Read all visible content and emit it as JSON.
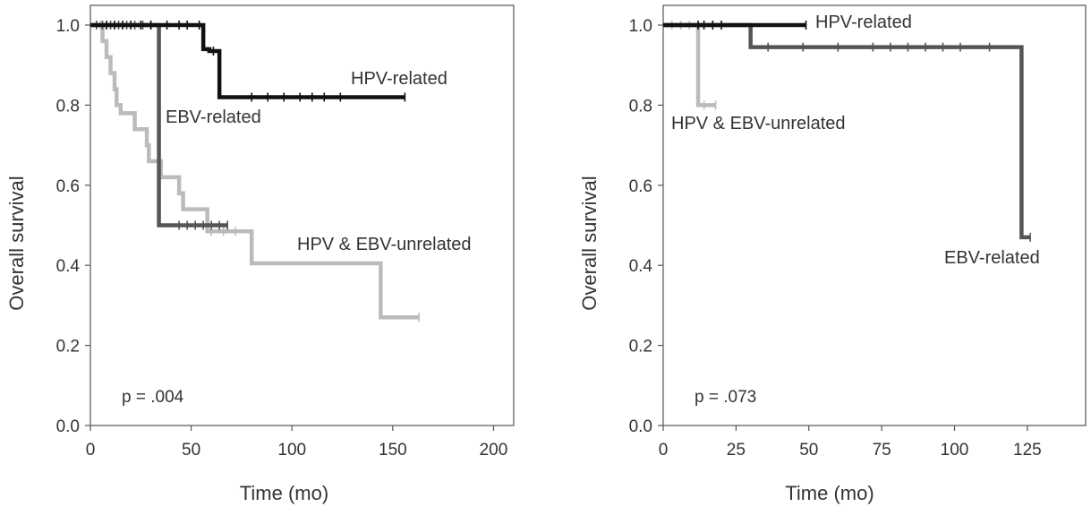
{
  "chart_data": [
    {
      "type": "line",
      "subtype": "kaplan-meier",
      "xlabel": "Time (mo)",
      "ylabel": "Overall survival",
      "xlim": [
        0,
        210
      ],
      "ylim": [
        0,
        1.0
      ],
      "xticks": [
        "0",
        "50",
        "100",
        "150",
        "200"
      ],
      "yticks": [
        "0.0",
        "0.2",
        "0.4",
        "0.6",
        "0.8",
        "1.0"
      ],
      "annotation": "p = .004",
      "grid": false,
      "series": [
        {
          "name": "HPV & EBV-unrelated",
          "color": "#bbbbbb",
          "label_position": "right",
          "steps": [
            [
              0,
              1.0
            ],
            [
              6,
              0.96
            ],
            [
              8,
              0.92
            ],
            [
              10,
              0.88
            ],
            [
              12,
              0.84
            ],
            [
              13,
              0.8
            ],
            [
              15,
              0.78
            ],
            [
              22,
              0.74
            ],
            [
              28,
              0.7
            ],
            [
              29,
              0.66
            ],
            [
              35,
              0.62
            ],
            [
              44,
              0.58
            ],
            [
              46,
              0.54
            ],
            [
              58,
              0.485
            ],
            [
              80,
              0.405
            ],
            [
              144,
              0.27
            ],
            [
              163,
              0.27
            ]
          ],
          "censors": [
            [
              5,
              1.0
            ],
            [
              60,
              0.485
            ],
            [
              66,
              0.485
            ],
            [
              72,
              0.485
            ],
            [
              163,
              0.27
            ]
          ]
        },
        {
          "name": "EBV-related",
          "color": "#555555",
          "label_position": "upper-left",
          "steps": [
            [
              0,
              1.0
            ],
            [
              34,
              0.5
            ],
            [
              68,
              0.5
            ]
          ],
          "censors": [
            [
              3,
              1.0
            ],
            [
              6,
              1.0
            ],
            [
              10,
              1.0
            ],
            [
              14,
              1.0
            ],
            [
              18,
              1.0
            ],
            [
              22,
              1.0
            ],
            [
              26,
              1.0
            ],
            [
              30,
              1.0
            ],
            [
              44,
              0.5
            ],
            [
              48,
              0.5
            ],
            [
              52,
              0.5
            ],
            [
              56,
              0.5
            ],
            [
              60,
              0.5
            ],
            [
              64,
              0.5
            ],
            [
              68,
              0.5
            ]
          ]
        },
        {
          "name": "HPV-related",
          "color": "#111111",
          "label_position": "top-right",
          "steps": [
            [
              0,
              1.0
            ],
            [
              56,
              0.94
            ],
            [
              59,
              0.935
            ],
            [
              64,
              0.82
            ],
            [
              156,
              0.82
            ]
          ],
          "censors": [
            [
              8,
              1.0
            ],
            [
              12,
              1.0
            ],
            [
              16,
              1.0
            ],
            [
              20,
              1.0
            ],
            [
              25,
              1.0
            ],
            [
              30,
              1.0
            ],
            [
              38,
              1.0
            ],
            [
              44,
              1.0
            ],
            [
              48,
              1.0
            ],
            [
              54,
              1.0
            ],
            [
              61,
              0.935
            ],
            [
              80,
              0.82
            ],
            [
              88,
              0.82
            ],
            [
              96,
              0.82
            ],
            [
              104,
              0.82
            ],
            [
              110,
              0.82
            ],
            [
              116,
              0.82
            ],
            [
              124,
              0.82
            ],
            [
              156,
              0.82
            ]
          ]
        }
      ]
    },
    {
      "type": "line",
      "subtype": "kaplan-meier",
      "xlabel": "Time (mo)",
      "ylabel": "Overall survival",
      "xlim": [
        0,
        145
      ],
      "ylim": [
        0,
        1.0
      ],
      "xticks": [
        "0",
        "25",
        "50",
        "75",
        "100",
        "125"
      ],
      "yticks": [
        "0.0",
        "0.2",
        "0.4",
        "0.6",
        "0.8",
        "1.0"
      ],
      "annotation": "p = .073",
      "grid": false,
      "series": [
        {
          "name": "HPV & EBV-unrelated",
          "color": "#bbbbbb",
          "label_position": "left",
          "steps": [
            [
              0,
              1.0
            ],
            [
              12,
              0.8
            ],
            [
              18,
              0.8
            ]
          ],
          "censors": [
            [
              3,
              1.0
            ],
            [
              6,
              1.0
            ],
            [
              9,
              1.0
            ],
            [
              14,
              0.8
            ],
            [
              18,
              0.8
            ]
          ]
        },
        {
          "name": "EBV-related",
          "color": "#555555",
          "label_position": "lower-right",
          "steps": [
            [
              0,
              1.0
            ],
            [
              30,
              0.945
            ],
            [
              120,
              0.945
            ],
            [
              123,
              0.47
            ],
            [
              126,
              0.47
            ]
          ],
          "censors": [
            [
              36,
              0.945
            ],
            [
              48,
              0.945
            ],
            [
              60,
              0.945
            ],
            [
              72,
              0.945
            ],
            [
              78,
              0.945
            ],
            [
              84,
              0.945
            ],
            [
              90,
              0.945
            ],
            [
              96,
              0.945
            ],
            [
              102,
              0.945
            ],
            [
              112,
              0.945
            ],
            [
              126,
              0.47
            ]
          ]
        },
        {
          "name": "HPV-related",
          "color": "#111111",
          "label_position": "top",
          "steps": [
            [
              0,
              1.0
            ],
            [
              49,
              1.0
            ]
          ],
          "censors": [
            [
              12,
              1.0
            ],
            [
              14,
              1.0
            ],
            [
              17,
              1.0
            ],
            [
              20,
              1.0
            ],
            [
              49,
              1.0
            ]
          ]
        }
      ]
    }
  ]
}
